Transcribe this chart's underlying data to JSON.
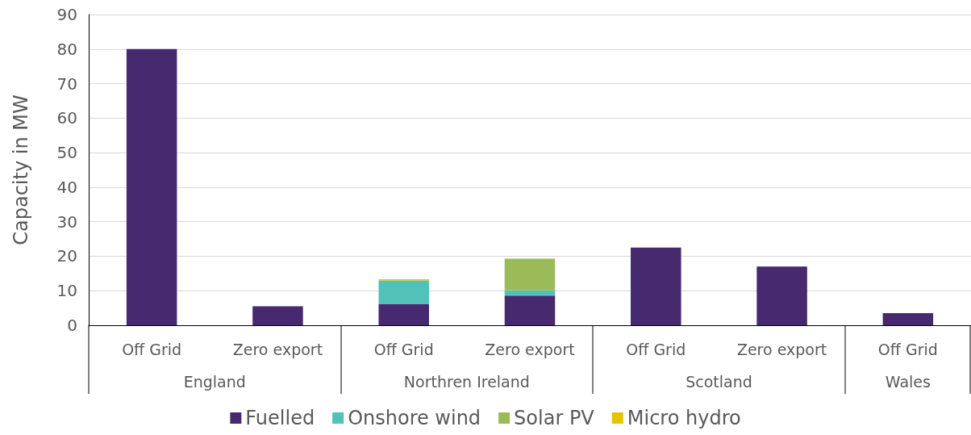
{
  "chart_data": {
    "type": "bar",
    "ylabel": "Capacity in MW",
    "categories": [
      "Off Grid",
      "Zero export",
      "Off Grid",
      "Zero export",
      "Off Grid",
      "Zero export",
      "Off Grid"
    ],
    "annotations": [
      "England",
      "Northren Ireland",
      "Scotland",
      "Wales"
    ],
    "stacked": true,
    "series": [
      {
        "name": "Fuelled",
        "color": "#46296e",
        "values": [
          80,
          5.5,
          6.2,
          8.6,
          22.5,
          17,
          3.5
        ]
      },
      {
        "name": "Onshore wind",
        "color": "#52c1b8",
        "values": [
          null,
          null,
          6.8,
          1.5,
          null,
          null,
          null
        ]
      },
      {
        "name": "Solar PV",
        "color": "#9bbb59",
        "values": [
          null,
          null,
          null,
          9.2,
          null,
          null,
          null
        ]
      },
      {
        "name": "Micro hydro",
        "color": "#e6c300",
        "values": [
          null,
          null,
          0.3,
          null,
          null,
          null,
          null
        ]
      }
    ],
    "ylim": [
      0,
      90
    ],
    "yticks": [
      0,
      10,
      20,
      30,
      40,
      50,
      60,
      70,
      80,
      90
    ],
    "grid": "y",
    "legend": "bottom"
  }
}
